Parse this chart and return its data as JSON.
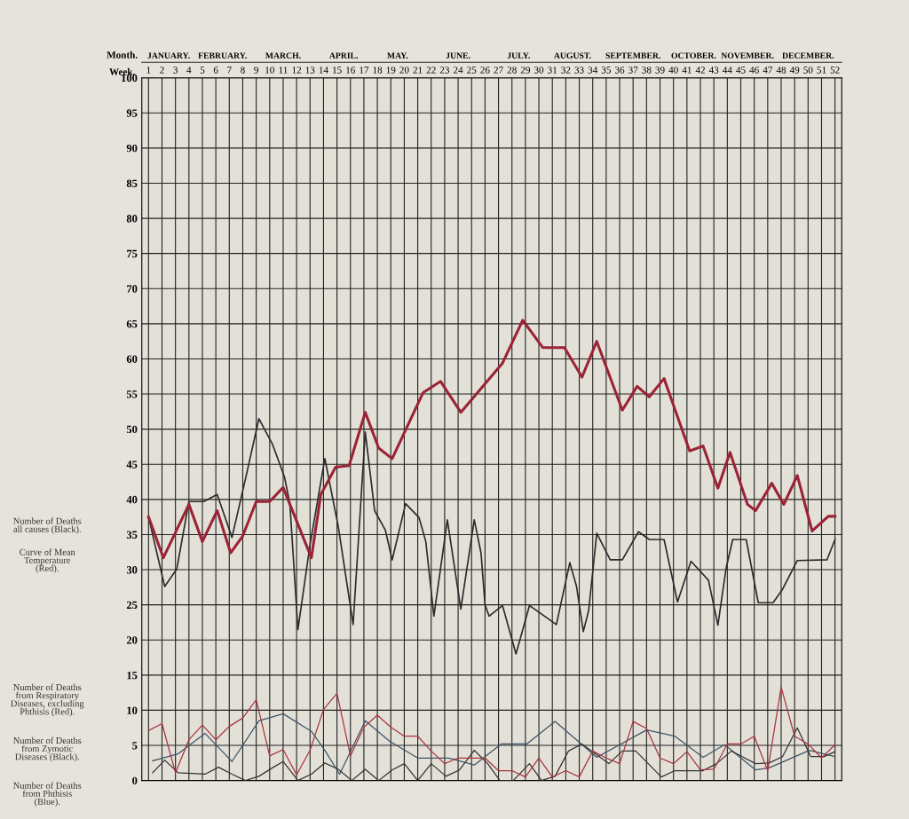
{
  "chart_data": {
    "type": "line",
    "xlabel": "Week.",
    "xlim": [
      0.5,
      52.5
    ],
    "xticks": [
      1,
      2,
      3,
      4,
      5,
      6,
      7,
      8,
      9,
      10,
      11,
      12,
      13,
      14,
      15,
      16,
      17,
      18,
      19,
      20,
      21,
      22,
      23,
      24,
      25,
      26,
      27,
      28,
      29,
      30,
      31,
      32,
      33,
      34,
      35,
      36,
      37,
      38,
      39,
      40,
      41,
      42,
      43,
      44,
      45,
      46,
      47,
      48,
      49,
      50,
      51,
      52
    ],
    "ylim": [
      0,
      100
    ],
    "yticks": [
      0,
      5,
      10,
      15,
      20,
      25,
      30,
      35,
      40,
      45,
      50,
      55,
      60,
      65,
      70,
      75,
      80,
      85,
      90,
      95,
      100
    ],
    "grid": true,
    "annotations": [
      "Number of Deaths\nall causes (Black).",
      "Curve of Mean\nTemperature\n(Red).",
      "Number of Deaths\nfrom Respiratory\nDiseases, excluding\nPhthisis (Red).",
      "Number of Deaths\nfrom Zymotic\nDiseases (Black).",
      "Number of Deaths\nfrom Phthisis\n(Blue).",
      "Month.",
      "JANUARY.",
      "FEBRUARY.",
      "MARCH.",
      "APRIL.",
      "MAY.",
      "JUNE.",
      "JULY.",
      "AUGUST.",
      "SEPTEMBER.",
      "OCTOBER.",
      "NOVEMBER.",
      "DECEMBER."
    ],
    "series": [
      {
        "color": "#9b2335",
        "x": [
          1.0,
          2.1,
          4.0,
          5.0,
          6.1,
          7.1,
          8.0,
          9.0,
          10.0,
          11.0,
          13.1,
          13.8,
          14.9,
          15.9,
          17.1,
          18.1,
          19.1,
          21.4,
          22.7,
          24.2,
          27.3,
          28.8,
          30.3,
          31.9,
          33.2,
          34.3,
          36.2,
          37.3,
          38.2,
          39.3,
          41.2,
          42.2,
          43.3,
          44.2,
          45.5,
          46.1,
          47.3,
          48.2,
          49.2,
          50.3,
          51.5,
          52.0
        ],
        "values": [
          37.5,
          31.7,
          39.3,
          34.0,
          38.4,
          32.4,
          34.8,
          39.7,
          39.7,
          41.7,
          31.7,
          40.7,
          44.6,
          44.8,
          52.4,
          47.3,
          45.8,
          55.2,
          56.8,
          52.4,
          59.4,
          65.5,
          61.6,
          61.6,
          57.4,
          62.5,
          52.7,
          56.1,
          54.6,
          57.2,
          46.9,
          47.6,
          41.6,
          46.7,
          39.3,
          38.4,
          42.3,
          39.3,
          43.4,
          35.5,
          37.6,
          37.6
        ]
      },
      {
        "color": "#2b2b2b",
        "x": [
          1.0,
          2.2,
          3.1,
          4.0,
          5.1,
          6.1,
          7.2,
          8.2,
          9.2,
          10.2,
          11.1,
          11.5,
          12.1,
          13.0,
          14.1,
          15.1,
          16.2,
          17.1,
          17.8,
          18.6,
          19.1,
          20.1,
          21.1,
          21.6,
          22.2,
          23.2,
          24.2,
          25.2,
          25.7,
          26.0,
          26.3,
          27.3,
          28.3,
          29.3,
          31.3,
          32.3,
          32.8,
          33.3,
          33.7,
          34.3,
          35.3,
          36.2,
          37.4,
          38.2,
          39.3,
          40.3,
          41.3,
          42.6,
          43.3,
          43.9,
          44.4,
          45.4,
          46.3,
          47.4,
          48.1,
          49.2,
          51.4,
          52.0
        ],
        "values": [
          37.5,
          27.6,
          30.1,
          39.7,
          39.7,
          40.7,
          34.6,
          42.9,
          51.5,
          47.9,
          43.2,
          39.4,
          21.5,
          33.6,
          45.8,
          36.1,
          22.2,
          49.6,
          38.4,
          35.6,
          31.4,
          39.4,
          37.4,
          34.0,
          23.4,
          37.1,
          24.4,
          37.1,
          32.4,
          25.0,
          23.4,
          24.9,
          18.0,
          24.9,
          22.2,
          31.0,
          27.6,
          21.2,
          24.2,
          35.2,
          31.4,
          31.4,
          35.4,
          34.3,
          34.3,
          25.4,
          31.2,
          28.5,
          22.1,
          30.1,
          34.3,
          34.3,
          25.3,
          25.3,
          27.2,
          31.3,
          31.4,
          34.3
        ]
      },
      {
        "color": "#a8343f",
        "x": [
          1,
          2,
          3,
          4,
          5,
          6,
          7,
          8,
          9,
          10,
          11,
          12,
          13,
          14,
          15,
          16,
          17,
          18,
          19,
          20,
          21,
          22,
          23,
          24,
          25,
          26,
          27,
          28,
          29,
          30,
          31,
          32,
          33,
          34,
          35,
          36,
          37,
          38,
          39,
          40,
          41,
          42,
          43,
          44,
          45,
          46,
          47,
          48,
          49,
          50,
          51,
          52
        ],
        "values": [
          7.1,
          8.1,
          1.1,
          5.8,
          7.9,
          5.8,
          7.7,
          8.9,
          11.5,
          3.5,
          4.4,
          0.8,
          4.3,
          10.1,
          12.4,
          3.5,
          7.6,
          9.3,
          7.6,
          6.3,
          6.3,
          4.2,
          2.4,
          3.2,
          3.2,
          3.2,
          1.4,
          1.4,
          0.5,
          3.2,
          0.5,
          1.4,
          0.5,
          4.2,
          3.2,
          2.4,
          8.4,
          7.4,
          3.2,
          2.4,
          4.1,
          1.5,
          1.6,
          5.2,
          5.2,
          6.3,
          1.4,
          13.3,
          6.3,
          5.2,
          3.2,
          5.1
        ]
      },
      {
        "color": "#333333",
        "x": [
          1.3,
          2.2,
          3.2,
          5.2,
          6.2,
          7.2,
          8.2,
          9.2,
          10.2,
          11.0,
          12.1,
          13.1,
          14.1,
          15.1,
          16.1,
          17.1,
          18.1,
          19.1,
          20.0,
          21.0,
          22.0,
          23.1,
          24.1,
          25.2,
          26.2,
          27.1,
          28.1,
          29.3,
          30.2,
          31.2,
          32.2,
          33.2,
          35.2,
          36.2,
          37.2,
          39.1,
          40.1,
          41.2,
          42.2,
          43.2,
          44.3,
          45.1,
          46.1,
          47.1,
          48.1,
          49.2,
          50.2,
          51.2,
          52.0
        ],
        "values": [
          1.1,
          2.9,
          1.1,
          0.9,
          1.9,
          0.9,
          0,
          0.6,
          1.8,
          2.7,
          0,
          0.9,
          2.5,
          1.6,
          0,
          1.6,
          0,
          1.5,
          2.4,
          0,
          2.4,
          0.6,
          1.5,
          4.3,
          2.4,
          0,
          0,
          2.4,
          0,
          0.6,
          4.2,
          5.2,
          2.4,
          4.2,
          4.2,
          0.5,
          1.4,
          1.4,
          1.4,
          2.4,
          4.2,
          3.4,
          2.4,
          2.5,
          3.4,
          7.5,
          3.4,
          3.4,
          4.1
        ]
      },
      {
        "color": "#3d5565",
        "x": [
          1.3,
          3.2,
          5.2,
          7.2,
          9.2,
          11.0,
          13.1,
          14.1,
          15.2,
          17.1,
          18.9,
          21.0,
          23.3,
          25.2,
          27.2,
          29.1,
          31.2,
          34.3,
          38.0,
          40.1,
          42.2,
          43.8,
          46.1,
          47.1,
          50.1,
          52.0
        ],
        "values": [
          2.8,
          3.8,
          6.7,
          2.7,
          8.5,
          9.5,
          7.0,
          4.3,
          0.9,
          8.5,
          5.6,
          3.2,
          3.2,
          2.2,
          5.2,
          5.2,
          8.4,
          3.3,
          7.2,
          6.3,
          3.3,
          5.1,
          1.5,
          1.8,
          4.3,
          3.4
        ]
      }
    ]
  }
}
